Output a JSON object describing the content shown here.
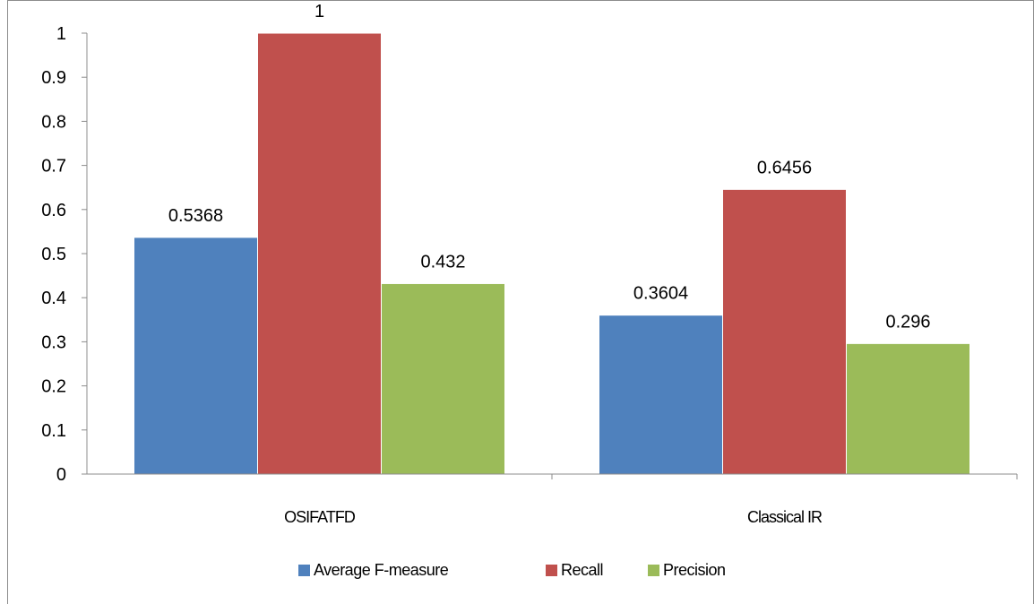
{
  "chart_data": {
    "type": "bar",
    "categories": [
      "OSIFATFD",
      "Classical IR"
    ],
    "series": [
      {
        "name": "Average F-measure",
        "values": [
          0.5368,
          0.3604
        ],
        "labels": [
          "0.5368",
          "0.3604"
        ],
        "color": "#4f81bd"
      },
      {
        "name": "Recall",
        "values": [
          1,
          0.6456
        ],
        "labels": [
          "1",
          "0.6456"
        ],
        "color": "#c0504d"
      },
      {
        "name": "Precision",
        "values": [
          0.432,
          0.296
        ],
        "labels": [
          "0.432",
          "0.296"
        ],
        "color": "#9bbb59"
      }
    ],
    "ylim": [
      0,
      1
    ],
    "yticks": [
      "0",
      "0.1",
      "0.2",
      "0.3",
      "0.4",
      "0.5",
      "0.6",
      "0.7",
      "0.8",
      "0.9",
      "1"
    ],
    "title": "",
    "xlabel": "",
    "ylabel": "",
    "grid": false,
    "legend_position": "bottom",
    "axis_color": "#8c8c8c"
  }
}
